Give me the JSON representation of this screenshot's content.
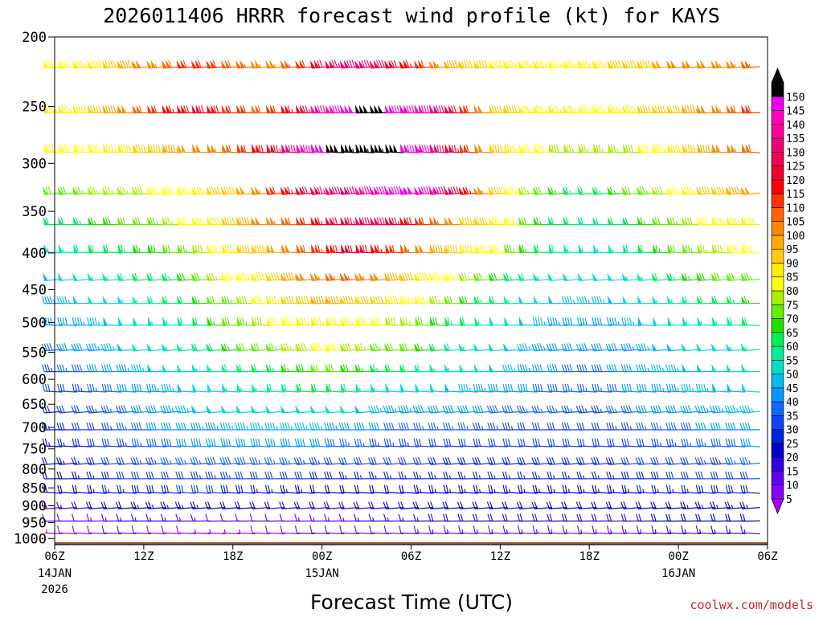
{
  "chart_data": {
    "type": "wind-barb-profile",
    "title": "2026011406 HRRR forecast wind profile (kt) for KAYS",
    "xlabel": "Forecast Time (UTC)",
    "ylabel": "",
    "x_ticks": [
      {
        "label": "06Z",
        "sub": "14JAN",
        "sub2": "2026",
        "hour": 0
      },
      {
        "label": "12Z",
        "sub": "",
        "sub2": "",
        "hour": 6
      },
      {
        "label": "18Z",
        "sub": "",
        "sub2": "",
        "hour": 12
      },
      {
        "label": "00Z",
        "sub": "15JAN",
        "sub2": "",
        "hour": 18
      },
      {
        "label": "06Z",
        "sub": "",
        "sub2": "",
        "hour": 24
      },
      {
        "label": "12Z",
        "sub": "",
        "sub2": "",
        "hour": 30
      },
      {
        "label": "18Z",
        "sub": "",
        "sub2": "",
        "hour": 36
      },
      {
        "label": "00Z",
        "sub": "16JAN",
        "sub2": "",
        "hour": 42
      },
      {
        "label": "06Z",
        "sub": "",
        "sub2": "",
        "hour": 48
      }
    ],
    "xlim": [
      0,
      48
    ],
    "y_ticks": [
      200,
      250,
      300,
      350,
      400,
      450,
      500,
      550,
      600,
      650,
      700,
      750,
      800,
      850,
      900,
      950,
      1000
    ],
    "ylim": [
      200,
      1020
    ],
    "y_scale": "log-pressure",
    "colorbar": {
      "levels": [
        5,
        10,
        15,
        20,
        25,
        30,
        35,
        40,
        45,
        50,
        55,
        60,
        65,
        70,
        75,
        80,
        85,
        90,
        95,
        100,
        105,
        110,
        115,
        120,
        125,
        130,
        135,
        140,
        145,
        150
      ],
      "colors": [
        "#8800ff",
        "#6600ee",
        "#3300dd",
        "#0000cc",
        "#0022dd",
        "#1144ee",
        "#1166ff",
        "#0099ff",
        "#00bbee",
        "#00ddcc",
        "#00ee99",
        "#00ee55",
        "#22dd00",
        "#66ee00",
        "#aaee00",
        "#ffff00",
        "#ffee00",
        "#ffcc00",
        "#ffaa00",
        "#ff8800",
        "#ff6600",
        "#ff3300",
        "#ff0000",
        "#ee0033",
        "#ee0055",
        "#ee0077",
        "#ff0099",
        "#ff00bb",
        "#ee00ee",
        "#000000"
      ],
      "min_arrow_color": "#aa00ff",
      "max_arrow_color": "#000000"
    },
    "terrain_color": "#9b5128",
    "wind_rows": [
      {
        "p": 220,
        "speeds": [
          80,
          82,
          85,
          88,
          92,
          96,
          100,
          104,
          108,
          110,
          112,
          112,
          108,
          106,
          104,
          104,
          106,
          110,
          120,
          125,
          130,
          132,
          128,
          122,
          116,
          110,
          104,
          96,
          92,
          90,
          88,
          86,
          86,
          86,
          84,
          84,
          86,
          86,
          90,
          92,
          94,
          98,
          100,
          100,
          102,
          104,
          104,
          106
        ]
      },
      {
        "p": 255,
        "speeds": [
          85,
          86,
          88,
          90,
          95,
          100,
          108,
          112,
          116,
          118,
          120,
          118,
          112,
          110,
          108,
          110,
          116,
          124,
          136,
          142,
          148,
          152,
          150,
          146,
          142,
          140,
          130,
          120,
          110,
          100,
          94,
          90,
          86,
          86,
          86,
          85,
          84,
          84,
          86,
          88,
          90,
          92,
          94,
          96,
          100,
          104,
          108,
          112
        ]
      },
      {
        "p": 290,
        "speeds": [
          80,
          80,
          82,
          84,
          86,
          88,
          92,
          94,
          96,
          98,
          100,
          104,
          108,
          112,
          118,
          124,
          132,
          140,
          148,
          152,
          156,
          155,
          153,
          150,
          146,
          142,
          134,
          124,
          112,
          100,
          92,
          86,
          82,
          80,
          78,
          76,
          76,
          76,
          76,
          78,
          80,
          84,
          88,
          92,
          96,
          100,
          104,
          108
        ]
      },
      {
        "p": 330,
        "speeds": [
          70,
          72,
          74,
          75,
          76,
          76,
          78,
          80,
          82,
          84,
          86,
          90,
          94,
          98,
          104,
          110,
          116,
          122,
          126,
          130,
          134,
          138,
          142,
          146,
          148,
          144,
          138,
          128,
          116,
          104,
          92,
          84,
          76,
          70,
          66,
          64,
          62,
          64,
          66,
          70,
          74,
          78,
          82,
          86,
          90,
          94,
          96,
          98
        ]
      },
      {
        "p": 365,
        "speeds": [
          60,
          62,
          64,
          66,
          68,
          70,
          72,
          74,
          76,
          80,
          84,
          88,
          92,
          96,
          100,
          104,
          108,
          112,
          116,
          120,
          124,
          128,
          128,
          124,
          118,
          112,
          106,
          100,
          94,
          90,
          86,
          80,
          72,
          66,
          62,
          60,
          58,
          58,
          60,
          62,
          66,
          70,
          74,
          78,
          82,
          84,
          86,
          88
        ]
      },
      {
        "p": 400,
        "speeds": [
          54,
          56,
          58,
          60,
          62,
          64,
          66,
          68,
          70,
          74,
          78,
          82,
          86,
          90,
          94,
          98,
          102,
          108,
          114,
          118,
          120,
          120,
          116,
          112,
          106,
          100,
          96,
          92,
          88,
          84,
          80,
          74,
          66,
          60,
          58,
          56,
          54,
          54,
          56,
          58,
          62,
          66,
          70,
          74,
          76,
          78,
          80,
          82
        ]
      },
      {
        "p": 435,
        "speeds": [
          48,
          50,
          52,
          54,
          56,
          58,
          60,
          62,
          64,
          68,
          72,
          76,
          80,
          84,
          88,
          92,
          96,
          100,
          104,
          106,
          106,
          104,
          100,
          96,
          92,
          88,
          84,
          80,
          76,
          72,
          68,
          64,
          58,
          54,
          52,
          50,
          50,
          50,
          52,
          54,
          56,
          60,
          64,
          66,
          68,
          70,
          72,
          74
        ]
      },
      {
        "p": 470,
        "speeds": [
          44,
          46,
          48,
          50,
          52,
          54,
          56,
          58,
          60,
          62,
          66,
          70,
          74,
          78,
          82,
          86,
          90,
          94,
          96,
          96,
          94,
          92,
          90,
          88,
          84,
          80,
          76,
          72,
          68,
          64,
          60,
          56,
          52,
          50,
          48,
          46,
          46,
          46,
          48,
          50,
          52,
          54,
          56,
          58,
          60,
          62,
          64,
          66
        ]
      },
      {
        "p": 505,
        "speeds": [
          40,
          42,
          44,
          46,
          48,
          50,
          52,
          54,
          56,
          58,
          62,
          66,
          70,
          74,
          78,
          82,
          84,
          86,
          86,
          86,
          84,
          82,
          80,
          78,
          76,
          72,
          68,
          64,
          60,
          56,
          52,
          50,
          48,
          46,
          44,
          42,
          42,
          42,
          44,
          46,
          48,
          50,
          52,
          54,
          54,
          56,
          58,
          60
        ]
      },
      {
        "p": 545,
        "speeds": [
          38,
          40,
          42,
          44,
          46,
          48,
          50,
          52,
          54,
          56,
          58,
          62,
          66,
          70,
          72,
          74,
          76,
          78,
          80,
          80,
          78,
          76,
          74,
          72,
          70,
          66,
          62,
          58,
          54,
          52,
          50,
          48,
          46,
          44,
          42,
          40,
          40,
          40,
          42,
          44,
          46,
          48,
          48,
          50,
          50,
          52,
          54,
          56
        ]
      },
      {
        "p": 585,
        "speeds": [
          34,
          36,
          38,
          40,
          42,
          44,
          46,
          48,
          50,
          52,
          54,
          56,
          58,
          60,
          62,
          64,
          66,
          68,
          70,
          70,
          68,
          66,
          64,
          62,
          60,
          58,
          56,
          54,
          52,
          50,
          48,
          46,
          44,
          42,
          40,
          38,
          38,
          38,
          40,
          42,
          44,
          46,
          46,
          48,
          48,
          50,
          50,
          52
        ]
      },
      {
        "p": 625,
        "speeds": [
          30,
          32,
          34,
          36,
          38,
          40,
          42,
          44,
          46,
          48,
          50,
          52,
          54,
          56,
          56,
          58,
          58,
          60,
          60,
          60,
          58,
          56,
          54,
          52,
          52,
          50,
          50,
          48,
          46,
          44,
          42,
          40,
          40,
          38,
          38,
          36,
          36,
          36,
          38,
          40,
          42,
          44,
          44,
          46,
          46,
          48,
          48,
          50
        ]
      },
      {
        "p": 665,
        "speeds": [
          28,
          30,
          32,
          34,
          36,
          38,
          40,
          42,
          44,
          46,
          48,
          48,
          50,
          50,
          50,
          52,
          52,
          52,
          52,
          52,
          50,
          48,
          46,
          44,
          44,
          42,
          42,
          40,
          40,
          40,
          38,
          38,
          36,
          36,
          36,
          34,
          34,
          34,
          36,
          38,
          40,
          40,
          42,
          42,
          44,
          44,
          46,
          46
        ]
      },
      {
        "p": 705,
        "speeds": [
          26,
          28,
          30,
          32,
          34,
          36,
          38,
          40,
          42,
          42,
          44,
          44,
          46,
          46,
          46,
          46,
          46,
          46,
          46,
          44,
          42,
          40,
          40,
          38,
          38,
          36,
          36,
          36,
          36,
          34,
          34,
          34,
          32,
          32,
          32,
          32,
          32,
          32,
          34,
          34,
          36,
          36,
          38,
          38,
          40,
          40,
          42,
          42
        ]
      },
      {
        "p": 745,
        "speeds": [
          24,
          26,
          28,
          30,
          32,
          34,
          36,
          38,
          38,
          40,
          40,
          40,
          42,
          42,
          42,
          42,
          40,
          40,
          40,
          38,
          36,
          36,
          34,
          34,
          34,
          32,
          32,
          32,
          32,
          32,
          30,
          30,
          30,
          30,
          30,
          30,
          30,
          30,
          32,
          32,
          32,
          34,
          34,
          36,
          36,
          38,
          38,
          40
        ]
      },
      {
        "p": 785,
        "speeds": [
          22,
          24,
          26,
          28,
          30,
          32,
          34,
          34,
          36,
          36,
          36,
          38,
          38,
          38,
          36,
          36,
          36,
          34,
          34,
          32,
          32,
          30,
          30,
          30,
          30,
          30,
          28,
          28,
          28,
          28,
          28,
          28,
          28,
          28,
          28,
          28,
          28,
          28,
          28,
          30,
          30,
          30,
          32,
          32,
          34,
          34,
          36,
          36
        ]
      },
      {
        "p": 825,
        "speeds": [
          20,
          22,
          24,
          26,
          28,
          30,
          30,
          32,
          32,
          32,
          34,
          34,
          34,
          32,
          32,
          32,
          30,
          30,
          28,
          28,
          26,
          26,
          26,
          26,
          26,
          26,
          26,
          26,
          26,
          26,
          26,
          26,
          26,
          26,
          26,
          26,
          26,
          26,
          26,
          28,
          28,
          28,
          30,
          30,
          30,
          32,
          32,
          32
        ]
      },
      {
        "p": 865,
        "speeds": [
          18,
          20,
          22,
          24,
          26,
          26,
          28,
          28,
          28,
          30,
          30,
          30,
          28,
          28,
          26,
          26,
          24,
          24,
          22,
          22,
          22,
          22,
          22,
          22,
          22,
          24,
          24,
          24,
          24,
          24,
          24,
          24,
          24,
          24,
          24,
          24,
          24,
          24,
          24,
          24,
          26,
          26,
          26,
          26,
          28,
          28,
          28,
          28
        ]
      },
      {
        "p": 905,
        "speeds": [
          14,
          16,
          18,
          20,
          22,
          22,
          24,
          24,
          24,
          24,
          24,
          22,
          20,
          20,
          18,
          18,
          18,
          18,
          18,
          18,
          18,
          18,
          18,
          20,
          20,
          20,
          20,
          20,
          20,
          20,
          20,
          20,
          20,
          20,
          22,
          22,
          22,
          22,
          22,
          22,
          22,
          22,
          22,
          24,
          24,
          24,
          24,
          24
        ]
      },
      {
        "p": 945,
        "speeds": [
          10,
          12,
          12,
          14,
          14,
          16,
          16,
          16,
          16,
          14,
          14,
          12,
          12,
          10,
          10,
          12,
          12,
          14,
          14,
          14,
          14,
          16,
          16,
          16,
          16,
          16,
          18,
          18,
          18,
          18,
          18,
          18,
          18,
          18,
          18,
          18,
          18,
          18,
          18,
          18,
          18,
          20,
          20,
          20,
          20,
          20,
          20,
          20
        ]
      },
      {
        "p": 985,
        "speeds": [
          6,
          8,
          8,
          8,
          10,
          10,
          10,
          8,
          8,
          8,
          6,
          6,
          6,
          6,
          8,
          8,
          8,
          10,
          10,
          10,
          10,
          12,
          12,
          12,
          12,
          14,
          14,
          14,
          14,
          14,
          14,
          14,
          14,
          14,
          14,
          14,
          14,
          14,
          14,
          14,
          14,
          16,
          16,
          16,
          16,
          16,
          16,
          16
        ]
      }
    ]
  },
  "credit": "coolwx.com/models"
}
